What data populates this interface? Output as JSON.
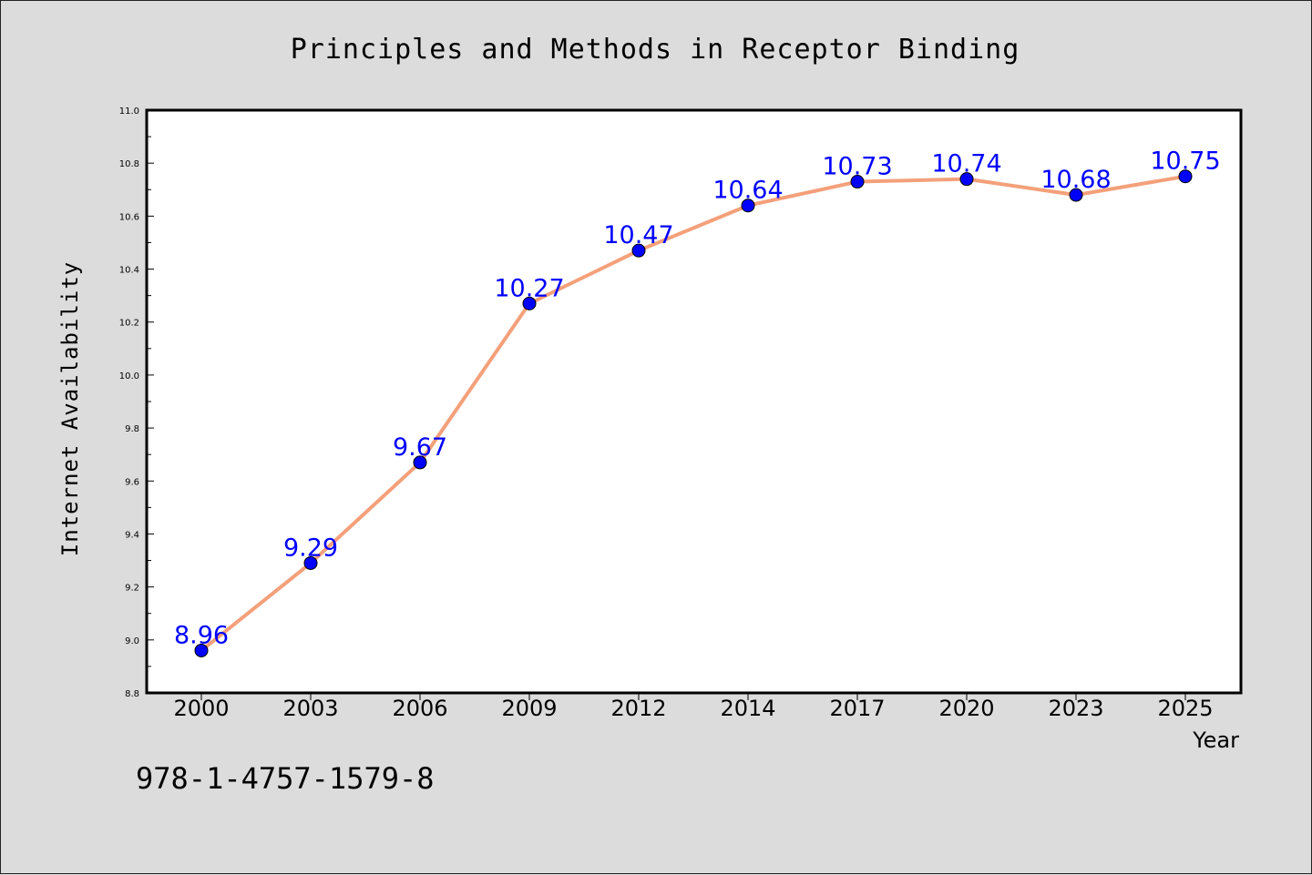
{
  "chart_data": {
    "type": "line",
    "title": "Principles and Methods in Receptor Binding",
    "xlabel": "Year",
    "ylabel": "Internet Availability",
    "categories": [
      "2000",
      "2003",
      "2006",
      "2009",
      "2012",
      "2014",
      "2017",
      "2020",
      "2023",
      "2025"
    ],
    "series": [
      {
        "values": [
          8.96,
          9.29,
          9.67,
          10.27,
          10.47,
          10.64,
          10.73,
          10.74,
          10.68,
          10.75
        ],
        "line_color": "#f4a07a",
        "marker_color": "#0000ff",
        "label_color": "#0000ff"
      }
    ],
    "ylim": [
      8.8,
      11.0
    ],
    "yticks": [
      "8.8",
      "9.0",
      "9.2",
      "9.4",
      "9.6",
      "9.8",
      "10.0",
      "10.2",
      "10.4",
      "10.6",
      "10.8",
      "11.0"
    ],
    "data_labels": [
      "8.96",
      "9.29",
      "9.67",
      "10.27",
      "10.47",
      "10.64",
      "10.73",
      "10.74",
      "10.68",
      "10.75"
    ],
    "grid": false,
    "legend": "none"
  },
  "footnote": "978-1-4757-1579-8",
  "colors": {
    "background": "#dcdcdc",
    "plot_background": "#ffffff"
  }
}
